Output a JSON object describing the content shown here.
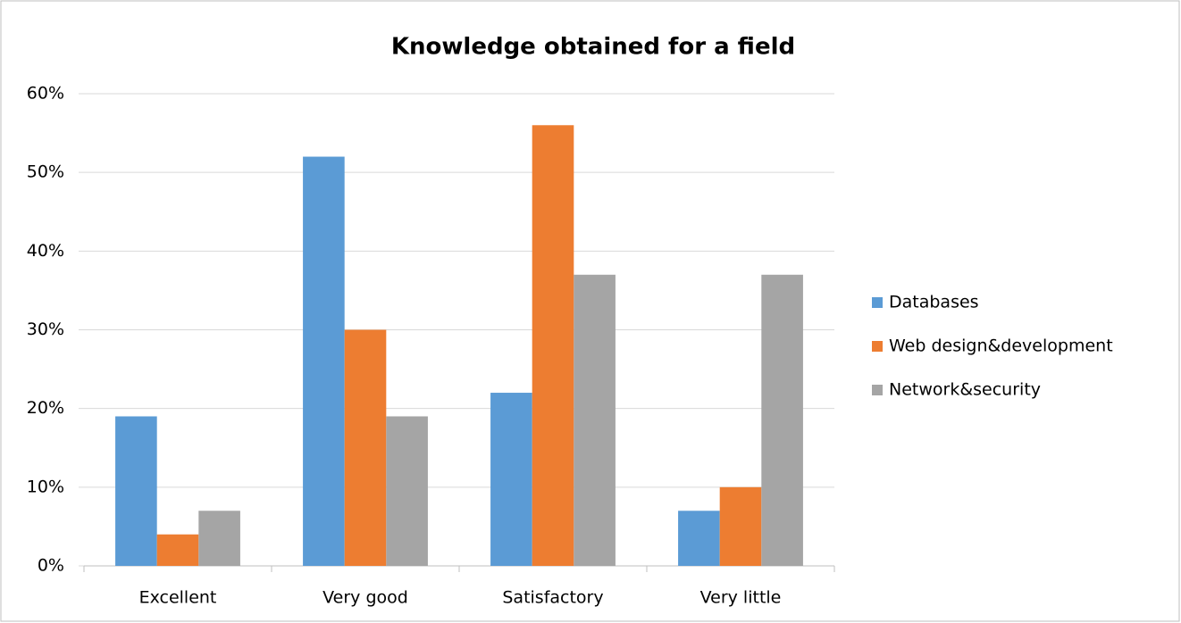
{
  "chart_data": {
    "type": "bar",
    "title": "Knowledge obtained for a field",
    "categories": [
      "Excellent",
      "Very good",
      "Satisfactory",
      "Very little"
    ],
    "series": [
      {
        "name": "Databases",
        "color": "#5b9bd5",
        "values": [
          19,
          52,
          22,
          7
        ]
      },
      {
        "name": "Web design&development",
        "color": "#ed7d31",
        "values": [
          4,
          30,
          56,
          10
        ]
      },
      {
        "name": "Network&security",
        "color": "#a5a5a5",
        "values": [
          7,
          19,
          37,
          37
        ]
      }
    ],
    "ylim": [
      0,
      60
    ],
    "yticks": [
      {
        "value": 0,
        "label": "0%"
      },
      {
        "value": 10,
        "label": "10%"
      },
      {
        "value": 20,
        "label": "20%"
      },
      {
        "value": 30,
        "label": "30%"
      },
      {
        "value": 40,
        "label": "40%"
      },
      {
        "value": 50,
        "label": "50%"
      },
      {
        "value": 60,
        "label": "60%"
      }
    ],
    "grid": true,
    "legend": "right"
  }
}
